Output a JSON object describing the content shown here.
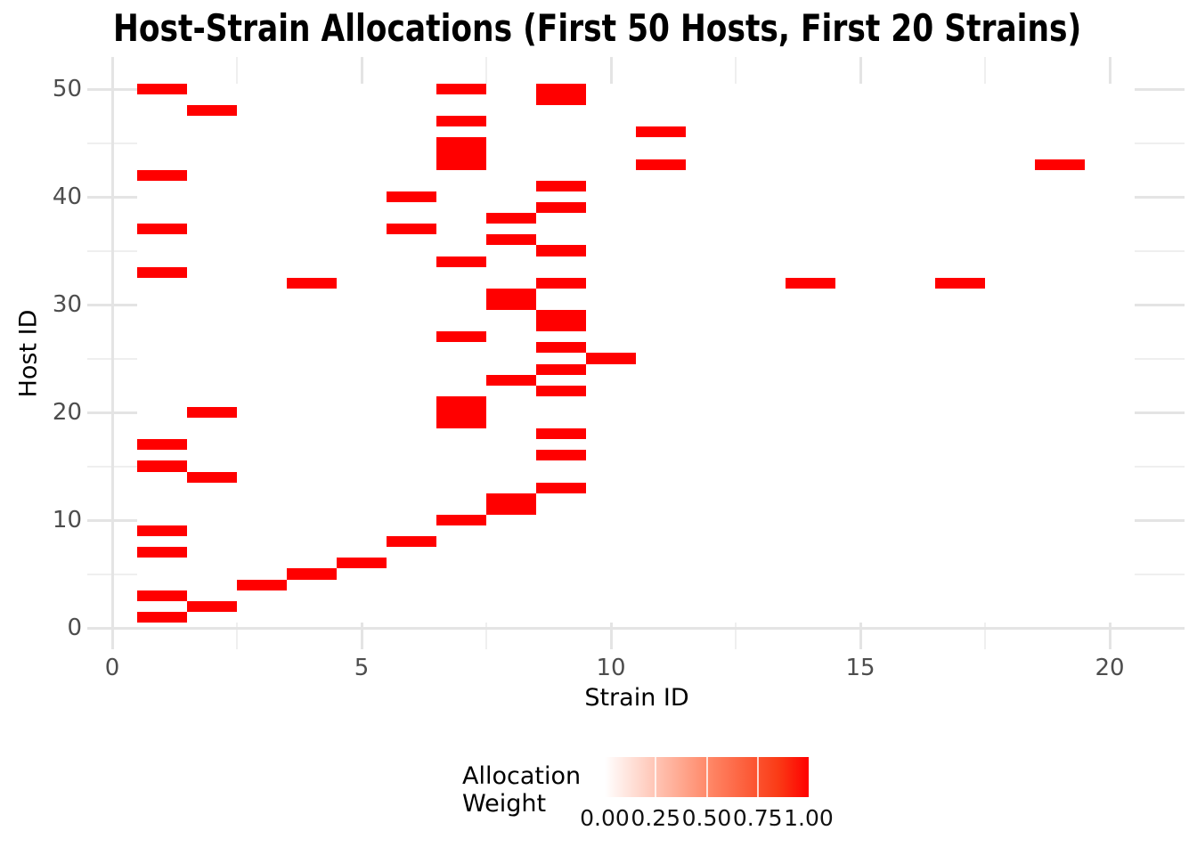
{
  "title": "Host-Strain Allocations (First 50 Hosts, First 20 Strains)",
  "axes": {
    "x": {
      "label": "Strain ID",
      "tick_labels": [
        "0",
        "5",
        "10",
        "15",
        "20"
      ],
      "tick_values": [
        0,
        5,
        10,
        15,
        20
      ],
      "minor_values": [
        2.5,
        7.5,
        12.5,
        17.5
      ]
    },
    "y": {
      "label": "Host ID",
      "tick_labels": [
        "0",
        "10",
        "20",
        "30",
        "40",
        "50"
      ],
      "tick_values": [
        0,
        10,
        20,
        30,
        40,
        50
      ],
      "minor_values": [
        5,
        15,
        25,
        35,
        45
      ]
    }
  },
  "legend": {
    "title_lines": [
      "Allocation",
      "Weight"
    ],
    "labels": [
      "0.00",
      "0.25",
      "0.50",
      "0.75",
      "1.00"
    ],
    "gradient_low": "#FFFFFF",
    "gradient_high": "#FF0000"
  },
  "chart_data": {
    "type": "heatmap",
    "title": "Host-Strain Allocations (First 50 Hosts, First 20 Strains)",
    "xlabel": "Strain ID",
    "ylabel": "Host ID",
    "x_range_shown": [
      0,
      20
    ],
    "y_range_shown": [
      0,
      50
    ],
    "tile_size": {
      "w": 1,
      "h": 1
    },
    "legend_title": "Allocation Weight",
    "colorbar": {
      "min": 0.0,
      "max": 1.0,
      "low": "#FFFFFF",
      "high": "#FF0000",
      "tick_labels": [
        "0.00",
        "0.25",
        "0.50",
        "0.75",
        "1.00"
      ]
    },
    "grid": {
      "major": true,
      "minor": true
    },
    "colors": {
      "tile_high": "#FF0000",
      "grid_major": "#E4E4E4",
      "grid_minor": "#EFEFEF",
      "tick_text": "#4D4D4D",
      "text": "#000000"
    },
    "tiles": [
      {
        "strain": 1,
        "host": 1,
        "weight": 1.0
      },
      {
        "strain": 2,
        "host": 2,
        "weight": 1.0
      },
      {
        "strain": 1,
        "host": 3,
        "weight": 1.0
      },
      {
        "strain": 3,
        "host": 4,
        "weight": 1.0
      },
      {
        "strain": 4,
        "host": 5,
        "weight": 1.0
      },
      {
        "strain": 5,
        "host": 6,
        "weight": 1.0
      },
      {
        "strain": 1,
        "host": 7,
        "weight": 1.0
      },
      {
        "strain": 6,
        "host": 8,
        "weight": 1.0
      },
      {
        "strain": 1,
        "host": 9,
        "weight": 1.0
      },
      {
        "strain": 7,
        "host": 10,
        "weight": 1.0
      },
      {
        "strain": 8,
        "host": 11,
        "weight": 1.0
      },
      {
        "strain": 8,
        "host": 12,
        "weight": 1.0
      },
      {
        "strain": 9,
        "host": 13,
        "weight": 1.0
      },
      {
        "strain": 2,
        "host": 14,
        "weight": 1.0
      },
      {
        "strain": 1,
        "host": 15,
        "weight": 1.0
      },
      {
        "strain": 9,
        "host": 16,
        "weight": 1.0
      },
      {
        "strain": 1,
        "host": 17,
        "weight": 1.0
      },
      {
        "strain": 9,
        "host": 18,
        "weight": 1.0
      },
      {
        "strain": 7,
        "host": 19,
        "weight": 1.0
      },
      {
        "strain": 2,
        "host": 20,
        "weight": 1.0
      },
      {
        "strain": 7,
        "host": 20,
        "weight": 1.0
      },
      {
        "strain": 7,
        "host": 21,
        "weight": 1.0
      },
      {
        "strain": 9,
        "host": 22,
        "weight": 1.0
      },
      {
        "strain": 8,
        "host": 23,
        "weight": 1.0
      },
      {
        "strain": 9,
        "host": 24,
        "weight": 1.0
      },
      {
        "strain": 10,
        "host": 25,
        "weight": 1.0
      },
      {
        "strain": 9,
        "host": 26,
        "weight": 1.0
      },
      {
        "strain": 7,
        "host": 27,
        "weight": 1.0
      },
      {
        "strain": 9,
        "host": 28,
        "weight": 1.0
      },
      {
        "strain": 9,
        "host": 29,
        "weight": 1.0
      },
      {
        "strain": 8,
        "host": 30,
        "weight": 1.0
      },
      {
        "strain": 8,
        "host": 31,
        "weight": 1.0
      },
      {
        "strain": 4,
        "host": 32,
        "weight": 1.0
      },
      {
        "strain": 9,
        "host": 32,
        "weight": 1.0
      },
      {
        "strain": 14,
        "host": 32,
        "weight": 1.0
      },
      {
        "strain": 17,
        "host": 32,
        "weight": 1.0
      },
      {
        "strain": 1,
        "host": 33,
        "weight": 1.0
      },
      {
        "strain": 7,
        "host": 34,
        "weight": 1.0
      },
      {
        "strain": 9,
        "host": 35,
        "weight": 1.0
      },
      {
        "strain": 8,
        "host": 36,
        "weight": 1.0
      },
      {
        "strain": 1,
        "host": 37,
        "weight": 1.0
      },
      {
        "strain": 6,
        "host": 37,
        "weight": 1.0
      },
      {
        "strain": 8,
        "host": 38,
        "weight": 1.0
      },
      {
        "strain": 9,
        "host": 39,
        "weight": 1.0
      },
      {
        "strain": 6,
        "host": 40,
        "weight": 1.0
      },
      {
        "strain": 9,
        "host": 41,
        "weight": 1.0
      },
      {
        "strain": 1,
        "host": 42,
        "weight": 1.0
      },
      {
        "strain": 7,
        "host": 43,
        "weight": 1.0
      },
      {
        "strain": 11,
        "host": 43,
        "weight": 1.0
      },
      {
        "strain": 19,
        "host": 43,
        "weight": 1.0
      },
      {
        "strain": 7,
        "host": 44,
        "weight": 1.0
      },
      {
        "strain": 7,
        "host": 45,
        "weight": 1.0
      },
      {
        "strain": 11,
        "host": 46,
        "weight": 1.0
      },
      {
        "strain": 7,
        "host": 47,
        "weight": 1.0
      },
      {
        "strain": 2,
        "host": 48,
        "weight": 1.0
      },
      {
        "strain": 9,
        "host": 49,
        "weight": 1.0
      },
      {
        "strain": 1,
        "host": 50,
        "weight": 1.0
      },
      {
        "strain": 7,
        "host": 50,
        "weight": 1.0
      },
      {
        "strain": 9,
        "host": 50,
        "weight": 1.0
      }
    ]
  }
}
